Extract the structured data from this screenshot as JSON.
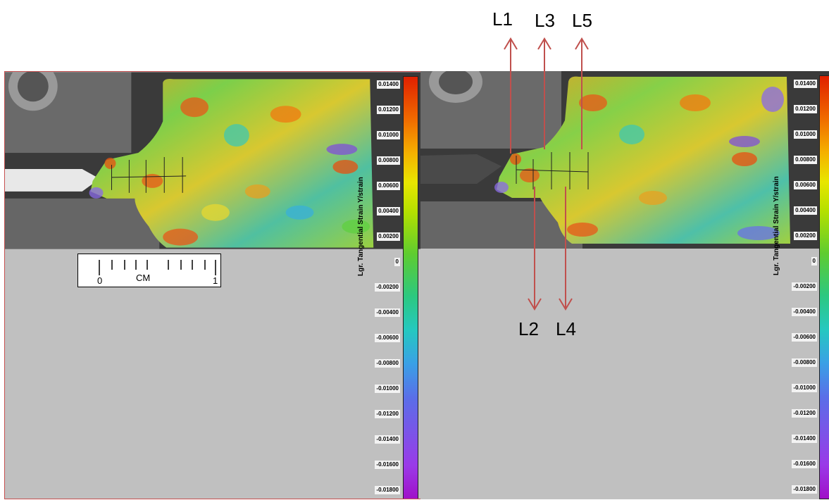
{
  "colorbar": {
    "title": "Lgr. Tangential Strain Y/strain",
    "ticks": [
      "0.01400",
      "0.01200",
      "0.01000",
      "0.00800",
      "0.00600",
      "0.00400",
      "0.00200",
      "0",
      "-0.00200",
      "-0.00400",
      "-0.00600",
      "-0.00800",
      "-0.01000",
      "-0.01200",
      "-0.01400",
      "-0.01600",
      "-0.01800"
    ]
  },
  "ruler": {
    "unit": "CM",
    "start": "0",
    "end": "1"
  },
  "line_labels": {
    "l1": "L1",
    "l2": "L2",
    "l3": "L3",
    "l4": "L4",
    "l5": "L5"
  },
  "colors": {
    "arrow": "#c0504d",
    "panel_border": "#c65050",
    "background_gray": "#c0c0c0"
  }
}
